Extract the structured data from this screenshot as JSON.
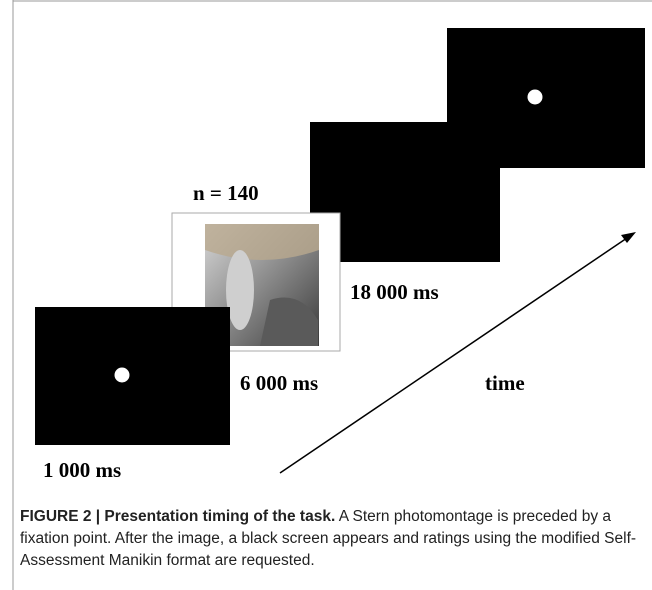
{
  "figure": {
    "labels": {
      "trials": "n = 140",
      "fixation_duration": "1 000 ms",
      "image_duration": "6 000 ms",
      "black_duration": "18 000 ms",
      "axis": "time"
    },
    "caption": {
      "label": "FIGURE 2 | Presentation timing of the task.",
      "text": "A Stern photomontage is preceded by a fixation point. After the image, a black screen appears and ratings using the modified Self-Assessment Manikin format are requested."
    }
  }
}
